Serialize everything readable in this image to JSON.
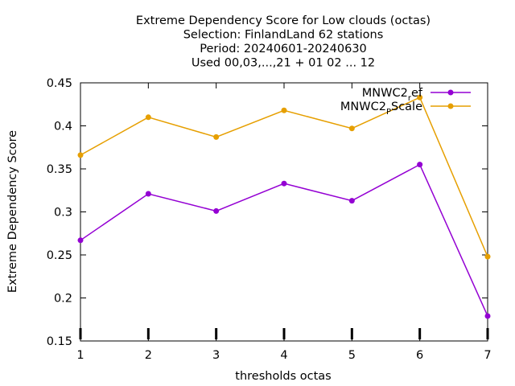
{
  "chart_data": {
    "type": "line",
    "title_lines": [
      "Extreme Dependency Score  for Low clouds (octas)",
      "Selection: FinlandLand     62 stations",
      "Period: 20240601-20240630",
      "Used 00,03,...,21 + 01 02 ... 12"
    ],
    "xlabel": "thresholds octas",
    "ylabel": "Extreme Dependency Score",
    "x": [
      1,
      2,
      3,
      4,
      5,
      6,
      7
    ],
    "xlim": [
      1,
      7
    ],
    "ylim": [
      0.15,
      0.45
    ],
    "yticks": [
      0.15,
      0.2,
      0.25,
      0.3,
      0.35,
      0.4,
      0.45
    ],
    "ytick_labels": [
      "0.15",
      "0.2",
      "0.25",
      "0.3",
      "0.35",
      "0.4",
      "0.45"
    ],
    "xtick_labels": [
      "1",
      "2",
      "3",
      "4",
      "5",
      "6",
      "7"
    ],
    "grid": false,
    "legend_position": "top-right",
    "series": [
      {
        "name_main": "MNWC2",
        "name_sub": "r",
        "name_tail": "ef",
        "color": "#9400d3",
        "values": [
          0.267,
          0.321,
          0.301,
          0.333,
          0.313,
          0.355,
          0.179
        ]
      },
      {
        "name_main": "MNWC2",
        "name_sub": "P",
        "name_tail": "Scale",
        "color": "#e69f00",
        "values": [
          0.366,
          0.41,
          0.387,
          0.418,
          0.397,
          0.433,
          0.248
        ]
      }
    ]
  }
}
